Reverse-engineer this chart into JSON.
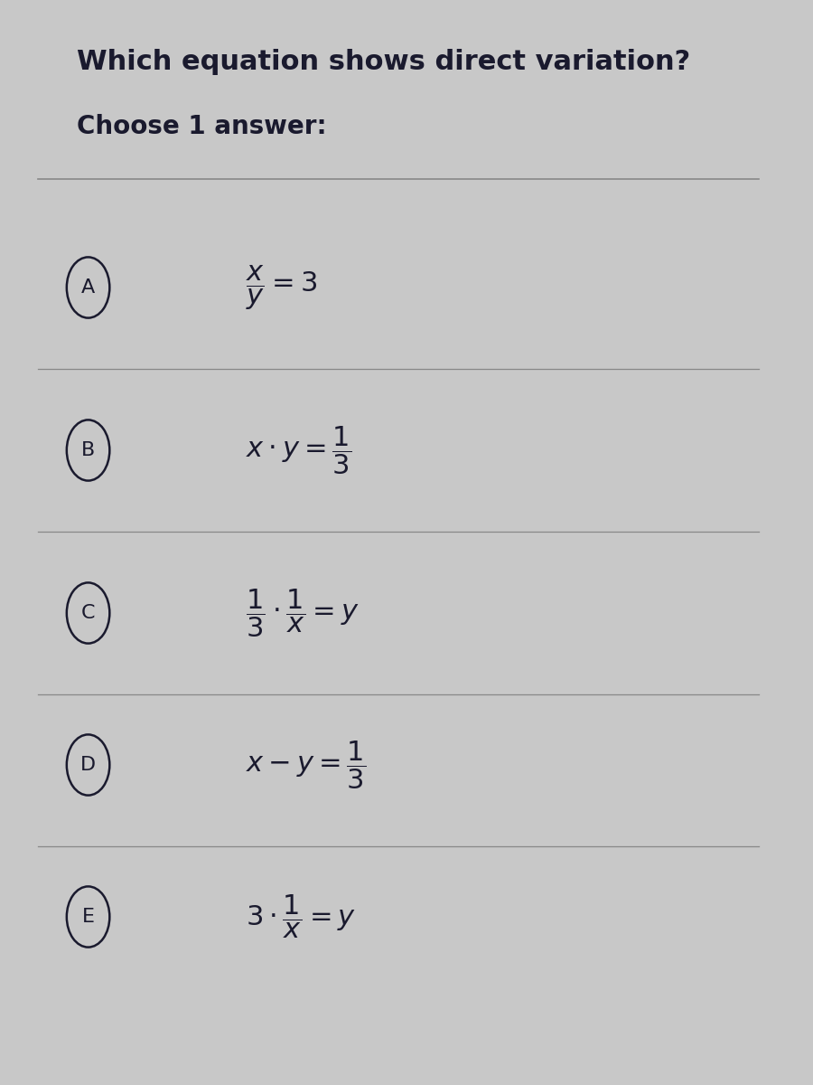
{
  "title": "Which equation shows direct variation?",
  "subtitle": "Choose 1 answer:",
  "background_color": "#c8c8c8",
  "text_color": "#1a1a2e",
  "options": [
    {
      "label": "A",
      "equation_latex": "$\\dfrac{x}{y} = 3$"
    },
    {
      "label": "B",
      "equation_latex": "$x \\cdot y = \\dfrac{1}{3}$"
    },
    {
      "label": "C",
      "equation_latex": "$\\dfrac{1}{3} \\cdot \\dfrac{1}{x} = y$"
    },
    {
      "label": "D",
      "equation_latex": "$x - y = \\dfrac{1}{3}$"
    },
    {
      "label": "E",
      "equation_latex": "$3 \\cdot \\dfrac{1}{x} = y$"
    }
  ],
  "divider_color": "#888888",
  "circle_color": "#1a1a2e",
  "font_size_title": 22,
  "font_size_subtitle": 20,
  "font_size_eq": 22,
  "font_size_label": 16
}
